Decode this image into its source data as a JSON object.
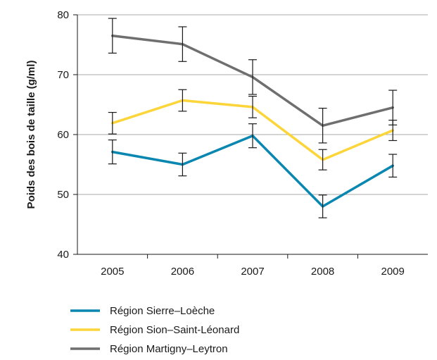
{
  "chart_data": {
    "type": "line",
    "title": "",
    "xlabel": "",
    "ylabel": "Poids des bois de taille (g/ml)",
    "categories": [
      "2005",
      "2006",
      "2007",
      "2008",
      "2009"
    ],
    "ylim": [
      40,
      80
    ],
    "yticks": [
      40,
      50,
      60,
      70,
      80
    ],
    "grid": true,
    "legend_position": "bottom",
    "series": [
      {
        "name": "Région Sierre–Loèche",
        "color": "#0a87b0",
        "values": [
          57.1,
          55.0,
          59.8,
          48.0,
          54.8
        ],
        "error": [
          2.0,
          1.9,
          2.0,
          1.9,
          1.9
        ]
      },
      {
        "name": "Région Sion–Saint-Léonard",
        "color": "#fbd539",
        "values": [
          61.9,
          65.7,
          64.6,
          55.8,
          60.7
        ],
        "error": [
          1.8,
          1.8,
          1.8,
          1.7,
          1.7
        ]
      },
      {
        "name": "Région Martigny–Leytron",
        "color": "#6f6f6f",
        "values": [
          76.5,
          75.1,
          69.6,
          61.5,
          64.5
        ],
        "error": [
          2.9,
          2.9,
          2.9,
          2.9,
          2.9
        ]
      }
    ]
  }
}
